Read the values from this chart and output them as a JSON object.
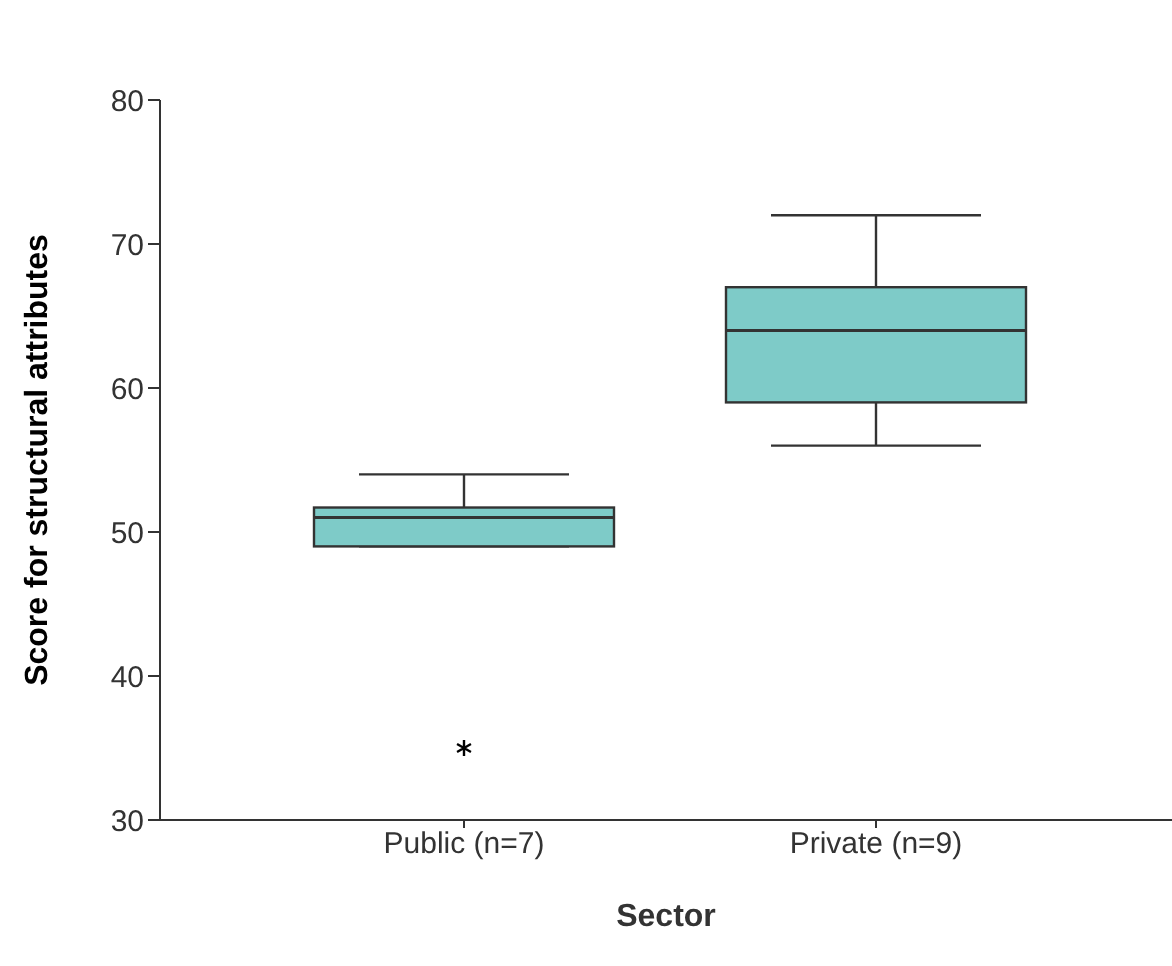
{
  "chart_data": {
    "type": "box",
    "xlabel": "Sector",
    "ylabel": "Score for structural attributes",
    "categories": [
      "Public (n=7)",
      "Private (n=9)"
    ],
    "color": "#7ecbc8",
    "boxes": [
      {
        "low": 49,
        "q1": 49,
        "median": 51,
        "q3": 51.7,
        "high": 54,
        "outliers": [
          35
        ]
      },
      {
        "low": 56,
        "q1": 59,
        "median": 64,
        "q3": 67,
        "high": 72
      }
    ],
    "ylim": [
      30,
      80
    ],
    "yticks": [
      30,
      40,
      50,
      60,
      70,
      80
    ]
  }
}
